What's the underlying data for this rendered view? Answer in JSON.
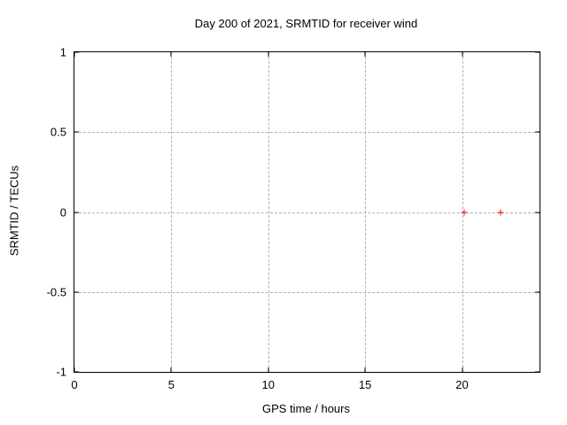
{
  "chart_data": {
    "type": "scatter",
    "title": "Day 200 of 2021, SRMTID for receiver wind",
    "xlabel": "GPS time / hours",
    "ylabel": "SRMTID / TECUs",
    "xlim": [
      0,
      24
    ],
    "ylim": [
      -1,
      1
    ],
    "xticks": [
      0,
      5,
      10,
      15,
      20
    ],
    "xtick_labels": [
      "0",
      "5",
      "10",
      "15",
      "20"
    ],
    "yticks": [
      -1,
      -0.5,
      0,
      0.5,
      1
    ],
    "ytick_labels": [
      "-1",
      "-0.5",
      "0",
      "0.5",
      "1"
    ],
    "grid": true,
    "legend_position": "none",
    "series": [
      {
        "name": "SRMTID",
        "marker": "plus",
        "color": "#ff0000",
        "points": [
          [
            20.1,
            0.0
          ],
          [
            22.0,
            0.0
          ]
        ]
      }
    ]
  },
  "colors": {
    "background": "#ffffff",
    "frame": "#000000",
    "grid": "#b0b0b0",
    "text": "#000000",
    "marker": "#ff0000"
  }
}
